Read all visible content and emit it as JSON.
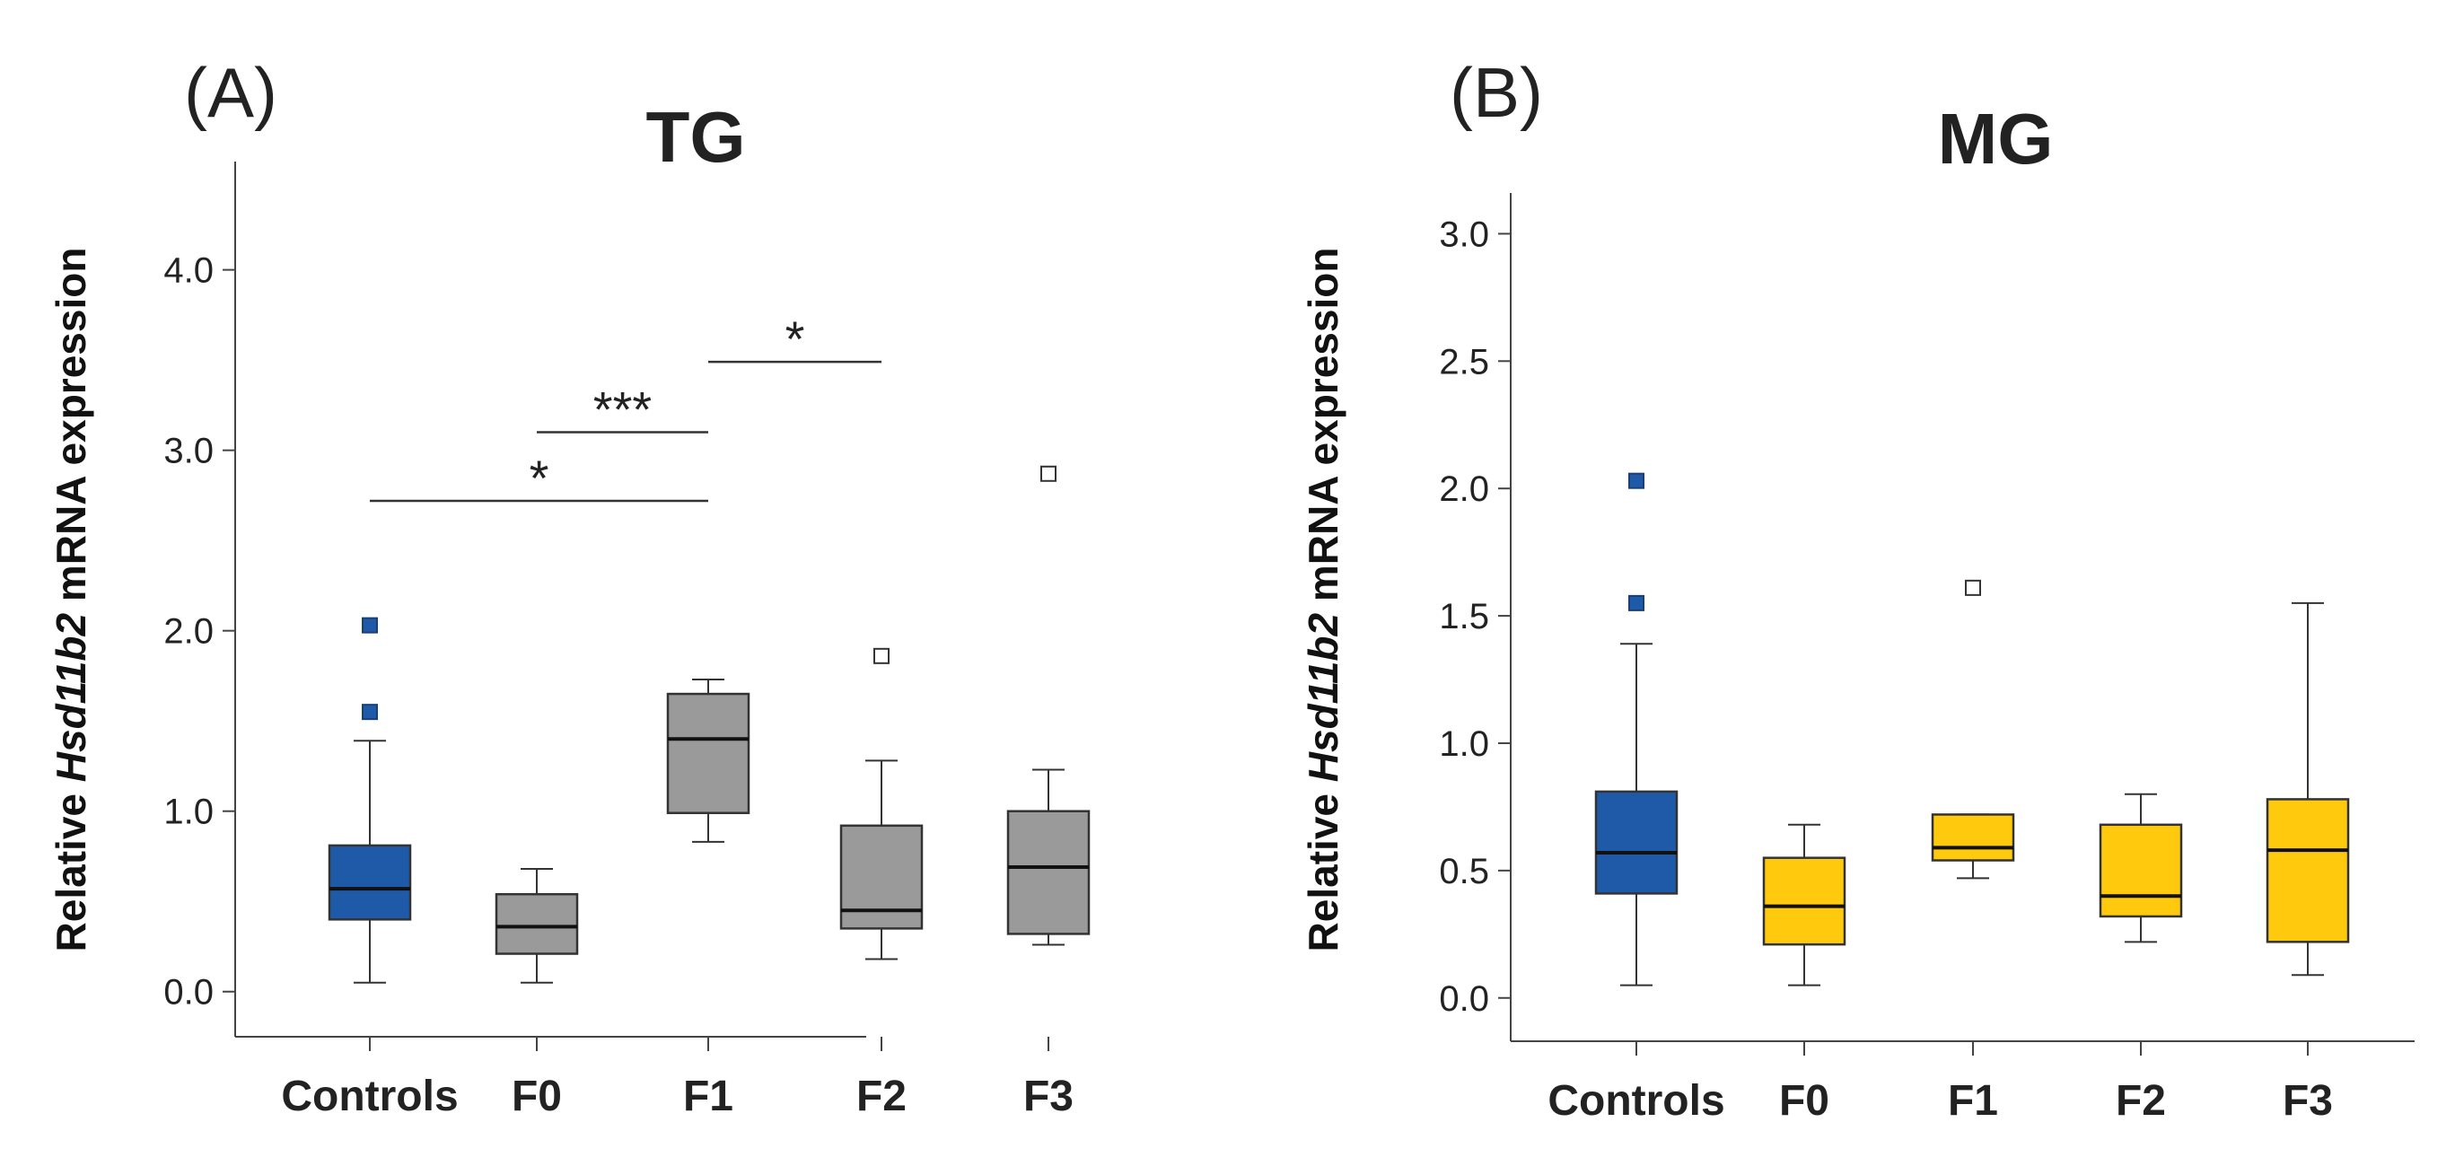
{
  "colors": {
    "controls": "#1f5aa8",
    "tg": "#9a9a9a",
    "mg": "#ffc90e",
    "outline": "#333333"
  },
  "chart_data": [
    {
      "type": "box",
      "panel_label": "(A)",
      "title": "TG",
      "ylabel_parts": [
        "Relative ",
        "Hsd11b2",
        " mRNA expression"
      ],
      "ylim": [
        -0.25,
        4.6
      ],
      "yticks": [
        0.0,
        1.0,
        2.0,
        3.0,
        4.0
      ],
      "ytick_labels": [
        "0.0",
        "1.0",
        "2.0",
        "3.0",
        "4.0"
      ],
      "categories": [
        "Controls",
        "F0",
        "F1",
        "F2",
        "F3"
      ],
      "fills": [
        "controls",
        "tg",
        "tg",
        "tg",
        "tg"
      ],
      "boxes": [
        {
          "whislo": 0.05,
          "q1": 0.4,
          "med": 0.57,
          "q3": 0.81,
          "whishi": 1.39,
          "outliers": [
            1.55,
            2.03
          ],
          "outlier_filled": true
        },
        {
          "whislo": 0.05,
          "q1": 0.21,
          "med": 0.36,
          "q3": 0.54,
          "whishi": 0.68,
          "outliers": [],
          "outlier_filled": false
        },
        {
          "whislo": 0.83,
          "q1": 0.99,
          "med": 1.4,
          "q3": 1.65,
          "whishi": 1.73,
          "outliers": [],
          "outlier_filled": false
        },
        {
          "whislo": 0.18,
          "q1": 0.35,
          "med": 0.45,
          "q3": 0.92,
          "whishi": 1.28,
          "outliers": [
            1.86
          ],
          "outlier_filled": false
        },
        {
          "whislo": 0.26,
          "q1": 0.32,
          "med": 0.69,
          "q3": 1.0,
          "whishi": 1.23,
          "outliers": [
            2.87
          ],
          "outlier_filled": false
        }
      ],
      "significance": [
        {
          "from": 0,
          "to": 2,
          "y": 2.72,
          "label": "*"
        },
        {
          "from": 1,
          "to": 2,
          "y": 3.1,
          "label": "***"
        },
        {
          "from": 2,
          "to": 3,
          "y": 3.49,
          "label": "*"
        }
      ]
    },
    {
      "type": "box",
      "panel_label": "(B)",
      "title": "MG",
      "ylabel_parts": [
        "Relative ",
        "Hsd11b2",
        " mRNA expression"
      ],
      "ylim": [
        -0.17,
        3.16
      ],
      "yticks": [
        0.0,
        0.5,
        1.0,
        1.5,
        2.0,
        2.5,
        3.0
      ],
      "ytick_labels": [
        "0.0",
        "0.5",
        "1.0",
        "1.5",
        "2.0",
        "2.5",
        "3.0"
      ],
      "categories": [
        "Controls",
        "F0",
        "F1",
        "F2",
        "F3"
      ],
      "fills": [
        "controls",
        "mg",
        "mg",
        "mg",
        "mg"
      ],
      "boxes": [
        {
          "whislo": 0.05,
          "q1": 0.41,
          "med": 0.57,
          "q3": 0.81,
          "whishi": 1.39,
          "outliers": [
            1.55,
            2.03
          ],
          "outlier_filled": true
        },
        {
          "whislo": 0.05,
          "q1": 0.21,
          "med": 0.36,
          "q3": 0.55,
          "whishi": 0.68,
          "outliers": [],
          "outlier_filled": false
        },
        {
          "whislo": 0.47,
          "q1": 0.54,
          "med": 0.59,
          "q3": 0.72,
          "whishi": 0.72,
          "outliers": [
            1.61
          ],
          "outlier_filled": false
        },
        {
          "whislo": 0.22,
          "q1": 0.32,
          "med": 0.4,
          "q3": 0.68,
          "whishi": 0.8,
          "outliers": [],
          "outlier_filled": false
        },
        {
          "whislo": 0.09,
          "q1": 0.22,
          "med": 0.58,
          "q3": 0.78,
          "whishi": 1.55,
          "outliers": [],
          "outlier_filled": false
        }
      ],
      "significance": []
    }
  ]
}
